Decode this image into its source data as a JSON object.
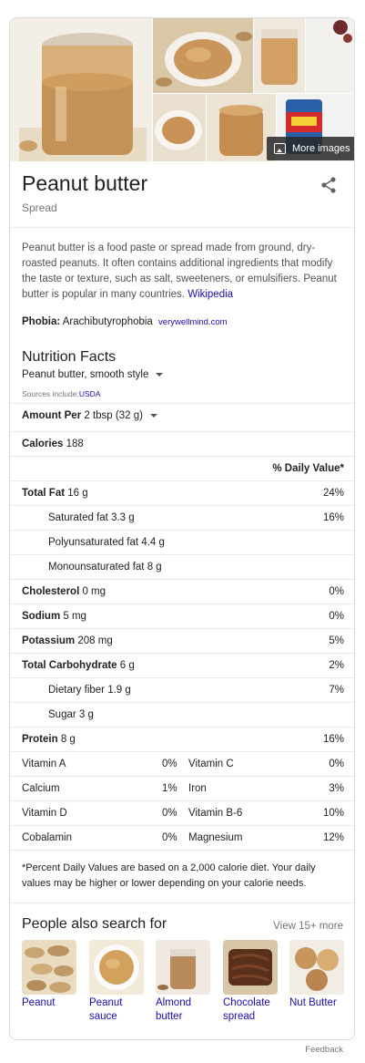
{
  "header": {
    "title": "Peanut butter",
    "subtitle": "Spread",
    "more_images_label": "More images"
  },
  "description": {
    "text": "Peanut butter is a food paste or spread made from ground, dry-roasted peanuts. It often contains additional ingredients that modify the taste or texture, such as salt, sweeteners, or emulsifiers. Peanut butter is popular in many countries.",
    "source_link": "Wikipedia"
  },
  "phobia": {
    "label": "Phobia:",
    "value": "Arachibutyrophobia",
    "source": "verywellmind.com"
  },
  "nutrition": {
    "title": "Nutrition Facts",
    "variant": "Peanut butter, smooth style",
    "sources_prefix": "Sources include:",
    "sources_link": "USDA",
    "amount_label": "Amount Per",
    "amount_value": "2 tbsp (32 g)",
    "calories_label": "Calories",
    "calories_value": "188",
    "dv_header": "% Daily Value*",
    "nutrients": [
      {
        "name": "Total Fat",
        "amount": "16 g",
        "dv": "24%"
      },
      {
        "name": "Saturated fat",
        "amount": "3.3 g",
        "dv": "16%"
      },
      {
        "name": "Polyunsaturated fat",
        "amount": "4.4 g",
        "dv": ""
      },
      {
        "name": "Monounsaturated fat",
        "amount": "8 g",
        "dv": ""
      },
      {
        "name": "Cholesterol",
        "amount": "0 mg",
        "dv": "0%"
      },
      {
        "name": "Sodium",
        "amount": "5 mg",
        "dv": "0%"
      },
      {
        "name": "Potassium",
        "amount": "208 mg",
        "dv": "5%"
      },
      {
        "name": "Total Carbohydrate",
        "amount": "6 g",
        "dv": "2%"
      },
      {
        "name": "Dietary fiber",
        "amount": "1.9 g",
        "dv": "7%"
      },
      {
        "name": "Sugar",
        "amount": "3 g",
        "dv": ""
      },
      {
        "name": "Protein",
        "amount": "8 g",
        "dv": "16%"
      }
    ],
    "vitamins": [
      {
        "left_name": "Vitamin A",
        "left_dv": "0%",
        "right_name": "Vitamin C",
        "right_dv": "0%"
      },
      {
        "left_name": "Calcium",
        "left_dv": "1%",
        "right_name": "Iron",
        "right_dv": "3%"
      },
      {
        "left_name": "Vitamin D",
        "left_dv": "0%",
        "right_name": "Vitamin B-6",
        "right_dv": "10%"
      },
      {
        "left_name": "Cobalamin",
        "left_dv": "0%",
        "right_name": "Magnesium",
        "right_dv": "12%"
      }
    ],
    "footnote": "*Percent Daily Values are based on a 2,000 calorie diet. Your daily values may be higher or lower depending on your calorie needs."
  },
  "people_also_search": {
    "title": "People also search for",
    "view_more": "View 15+ more",
    "items": [
      {
        "label": "Peanut"
      },
      {
        "label": "Peanut sauce"
      },
      {
        "label": "Almond butter"
      },
      {
        "label": "Chocolate spread"
      },
      {
        "label": "Nut Butter"
      }
    ]
  },
  "feedback_label": "Feedback",
  "colors": {
    "link": "#1a0dab",
    "muted": "#70757a",
    "divider": "#ebebeb",
    "peanut_butter": "#c9a064"
  }
}
